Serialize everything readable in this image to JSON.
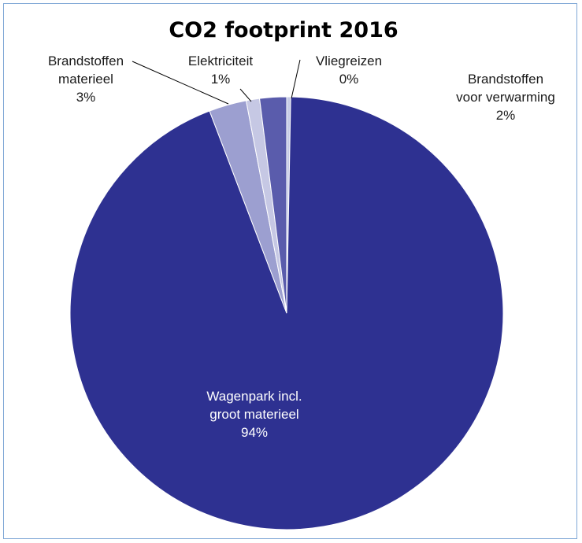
{
  "chart_data": {
    "type": "pie",
    "title": "CO2 footprint 2016",
    "slices": [
      {
        "name": "Vliegreizen",
        "value": 0.3,
        "label_lines": [
          "Vliegreizen",
          "0%"
        ],
        "color": "#c6cbe6"
      },
      {
        "name": "Wagenpark incl. groot materieel",
        "value": 94.0,
        "label_lines": [
          "Wagenpark incl.",
          "groot materieel",
          "94%"
        ],
        "color": "#2e3191"
      },
      {
        "name": "Brandstoffen materieel",
        "value": 2.8,
        "label_lines": [
          "Brandstoffen",
          "materieel",
          "3%"
        ],
        "color": "#9c9fd0"
      },
      {
        "name": "Elektriciteit",
        "value": 1.0,
        "label_lines": [
          "Elektriciteit",
          "1%"
        ],
        "color": "#c6c8e4"
      },
      {
        "name": "Brandstoffen voor verwarming",
        "value": 2.0,
        "label_lines": [
          "Brandstoffen",
          "voor verwarming",
          "2%"
        ],
        "color": "#5a5cac"
      }
    ],
    "legend": "none"
  },
  "colors": {
    "frame_border": "#7fa7d6",
    "slice_stroke": "#ffffff",
    "leader_line": "#000000"
  }
}
